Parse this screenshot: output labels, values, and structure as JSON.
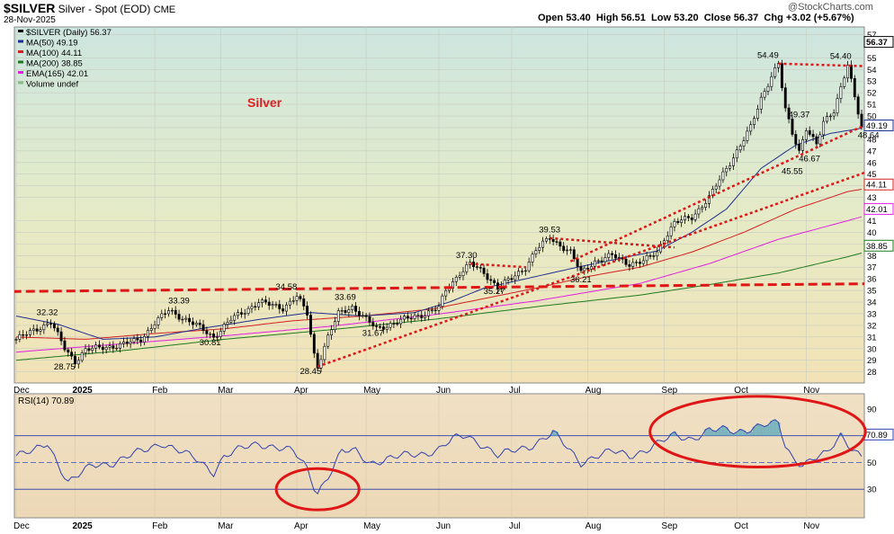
{
  "header": {
    "title": "$SILVER",
    "subtitle": "Silver - Spot (EOD)",
    "exchange": "CME",
    "date": "28-Nov-2025",
    "open_label": "Open",
    "open": "53.40",
    "high_label": "High",
    "high": "56.51",
    "low_label": "Low",
    "low": "53.20",
    "close_label": "Close",
    "close": "56.37",
    "chg_label": "Chg",
    "chg": "+3.02 (+5.67%)",
    "watermark": "@StockCharts.com"
  },
  "legend": [
    {
      "text": "$SILVER (Daily) 56.37",
      "color": "#000000"
    },
    {
      "text": "MA(50) 49.19",
      "color": "#1f2f8f"
    },
    {
      "text": "MA(100) 44.11",
      "color": "#d42020"
    },
    {
      "text": "MA(200) 38.85",
      "color": "#1e7a1e"
    },
    {
      "text": "EMA(165) 42.01",
      "color": "#e020e0"
    },
    {
      "text": "Volume undef",
      "color": "#88bb88"
    }
  ],
  "annotation_label": "Silver",
  "chart_data": [
    {
      "type": "candlestick",
      "title": "$SILVER (Daily)",
      "y_ticks": [
        28,
        29,
        30,
        31,
        32,
        33,
        34,
        35,
        36,
        37,
        38,
        39,
        40,
        41,
        43,
        44,
        45,
        46,
        47,
        48,
        49,
        50,
        51,
        52,
        53,
        54,
        55,
        57
      ],
      "ylim": [
        27.2,
        57.5
      ],
      "x_labels": [
        "Dec",
        "2025",
        "Feb",
        "Mar",
        "Apr",
        "May",
        "Jun",
        "Jul",
        "Aug",
        "Sep",
        "Oct",
        "Nov"
      ],
      "x_label_positions": [
        0,
        17,
        40,
        59,
        81,
        101,
        122,
        143,
        165,
        187,
        208,
        228
      ],
      "bars": 245,
      "price_path": [
        [
          0,
          30.8
        ],
        [
          10,
          32.3
        ],
        [
          14,
          30.0
        ],
        [
          17,
          28.9
        ],
        [
          20,
          29.9
        ],
        [
          30,
          30.3
        ],
        [
          36,
          30.8
        ],
        [
          40,
          32.2
        ],
        [
          44,
          33.3
        ],
        [
          52,
          32.0
        ],
        [
          57,
          31.0
        ],
        [
          62,
          32.5
        ],
        [
          70,
          34.0
        ],
        [
          77,
          33.5
        ],
        [
          81,
          34.5
        ],
        [
          84,
          33.0
        ],
        [
          86,
          29.5
        ],
        [
          87,
          28.5
        ],
        [
          90,
          31.0
        ],
        [
          93,
          33.0
        ],
        [
          97,
          33.6
        ],
        [
          101,
          32.5
        ],
        [
          104,
          31.7
        ],
        [
          107,
          32.0
        ],
        [
          112,
          32.5
        ],
        [
          118,
          33.0
        ],
        [
          122,
          33.5
        ],
        [
          124,
          35.0
        ],
        [
          128,
          36.5
        ],
        [
          131,
          37.3
        ],
        [
          135,
          36.5
        ],
        [
          139,
          35.3
        ],
        [
          143,
          36.0
        ],
        [
          147,
          37.0
        ],
        [
          150,
          38.5
        ],
        [
          154,
          39.5
        ],
        [
          160,
          38.3
        ],
        [
          163,
          36.5
        ],
        [
          167,
          37.5
        ],
        [
          172,
          38.0
        ],
        [
          177,
          37.3
        ],
        [
          181,
          37.5
        ],
        [
          185,
          38.3
        ],
        [
          187,
          39.5
        ],
        [
          190,
          40.8
        ],
        [
          195,
          41.3
        ],
        [
          200,
          43.0
        ],
        [
          204,
          45.0
        ],
        [
          208,
          47.0
        ],
        [
          212,
          49.0
        ],
        [
          215,
          51.5
        ],
        [
          218,
          53.5
        ],
        [
          220,
          54.5
        ],
        [
          222,
          50.5
        ],
        [
          224,
          48.5
        ],
        [
          226,
          47.0
        ],
        [
          228,
          49.0
        ],
        [
          231,
          47.5
        ],
        [
          233,
          49.4
        ],
        [
          236,
          50.5
        ],
        [
          238,
          52.5
        ],
        [
          240,
          54.4
        ],
        [
          242,
          51.5
        ],
        [
          244,
          49.0
        ],
        [
          246,
          51.0
        ],
        [
          247,
          48.6
        ],
        [
          249,
          51.5
        ],
        [
          251,
          53.5
        ],
        [
          252,
          56.4
        ]
      ],
      "price_labels": [
        {
          "text": "32.32",
          "x": 9,
          "y": 32.9
        },
        {
          "text": "28.75",
          "x": 14,
          "y": 28.2
        },
        {
          "text": "33.39",
          "x": 47,
          "y": 33.9
        },
        {
          "text": "30.81",
          "x": 56,
          "y": 30.3
        },
        {
          "text": "34.58",
          "x": 78,
          "y": 35.1
        },
        {
          "text": "28.45",
          "x": 85,
          "y": 27.8
        },
        {
          "text": "33.69",
          "x": 95,
          "y": 34.2
        },
        {
          "text": "31.67",
          "x": 103,
          "y": 31.1
        },
        {
          "text": "37.30",
          "x": 130,
          "y": 37.8
        },
        {
          "text": "35.27",
          "x": 138,
          "y": 34.7
        },
        {
          "text": "39.53",
          "x": 154,
          "y": 40.0
        },
        {
          "text": "36.21",
          "x": 163,
          "y": 35.7
        },
        {
          "text": "54.49",
          "x": 217,
          "y": 55.0
        },
        {
          "text": "49.37",
          "x": 226,
          "y": 49.9
        },
        {
          "text": "45.55",
          "x": 224,
          "y": 45.0
        },
        {
          "text": "46.67",
          "x": 229,
          "y": 46.1
        },
        {
          "text": "54.40",
          "x": 238,
          "y": 54.9
        },
        {
          "text": "48.64",
          "x": 246,
          "y": 48.1
        }
      ],
      "ma_paths": {
        "ma50": [
          [
            0,
            32.8
          ],
          [
            12,
            32.1
          ],
          [
            25,
            30.8
          ],
          [
            40,
            31.0
          ],
          [
            55,
            31.8
          ],
          [
            70,
            32.5
          ],
          [
            85,
            33.1
          ],
          [
            100,
            32.8
          ],
          [
            115,
            33.1
          ],
          [
            125,
            34.0
          ],
          [
            135,
            35.2
          ],
          [
            150,
            36.2
          ],
          [
            162,
            37.0
          ],
          [
            175,
            37.8
          ],
          [
            185,
            38.4
          ],
          [
            195,
            40.0
          ],
          [
            205,
            42.0
          ],
          [
            215,
            45.5
          ],
          [
            225,
            47.5
          ],
          [
            235,
            48.5
          ],
          [
            245,
            49.0
          ],
          [
            252,
            49.2
          ]
        ],
        "ma100": [
          [
            0,
            31.0
          ],
          [
            20,
            30.8
          ],
          [
            40,
            31.3
          ],
          [
            60,
            31.7
          ],
          [
            80,
            32.4
          ],
          [
            100,
            32.8
          ],
          [
            120,
            33.4
          ],
          [
            135,
            34.3
          ],
          [
            150,
            35.2
          ],
          [
            165,
            36.2
          ],
          [
            180,
            37.0
          ],
          [
            195,
            38.3
          ],
          [
            210,
            40.0
          ],
          [
            225,
            42.0
          ],
          [
            240,
            43.5
          ],
          [
            252,
            44.1
          ]
        ],
        "ma200": [
          [
            0,
            29.0
          ],
          [
            30,
            29.8
          ],
          [
            60,
            30.8
          ],
          [
            90,
            31.6
          ],
          [
            120,
            32.5
          ],
          [
            150,
            33.6
          ],
          [
            180,
            34.6
          ],
          [
            200,
            35.5
          ],
          [
            220,
            36.5
          ],
          [
            240,
            37.9
          ],
          [
            252,
            38.85
          ]
        ],
        "ema165": [
          [
            0,
            29.7
          ],
          [
            30,
            30.4
          ],
          [
            60,
            31.1
          ],
          [
            90,
            31.9
          ],
          [
            120,
            32.9
          ],
          [
            150,
            34.1
          ],
          [
            180,
            35.6
          ],
          [
            200,
            37.3
          ],
          [
            220,
            39.4
          ],
          [
            240,
            41.0
          ],
          [
            252,
            42.0
          ]
        ]
      },
      "last_value_tags": [
        {
          "text": "56.37",
          "y": 56.37,
          "color": "#000000",
          "bold": true
        },
        {
          "text": "49.19",
          "y": 49.19,
          "color": "#1f2f8f"
        },
        {
          "text": "44.11",
          "y": 44.11,
          "color": "#d42020"
        },
        {
          "text": "42.01",
          "y": 42.01,
          "color": "#e020e0"
        },
        {
          "text": "38.85",
          "y": 38.85,
          "color": "#1e7a1e"
        }
      ],
      "trendlines": [
        {
          "from": [
            -5,
            34.9
          ],
          "to": [
            255,
            35.6
          ],
          "style": "dashed-thick"
        },
        {
          "from": [
            87,
            28.45
          ],
          "to": [
            255,
            46.2
          ],
          "style": "dotted"
        },
        {
          "from": [
            160,
            37.5
          ],
          "to": [
            255,
            50.6
          ],
          "style": "dotted"
        },
        {
          "from": [
            131,
            37.3
          ],
          "to": [
            147,
            37.0
          ],
          "style": "dotted"
        },
        {
          "from": [
            154,
            39.5
          ],
          "to": [
            190,
            38.7
          ],
          "style": "dotted"
        },
        {
          "from": [
            220,
            54.5
          ],
          "to": [
            255,
            54.2
          ],
          "style": "dotted"
        }
      ]
    },
    {
      "type": "line",
      "title": "RSI(14) 70.89",
      "y_ticks": [
        30,
        50,
        70,
        90
      ],
      "ylim": [
        10,
        100
      ],
      "hlines": [
        30,
        50,
        70
      ],
      "last_value": "70.89",
      "rsi_path": [
        [
          0,
          55
        ],
        [
          5,
          58
        ],
        [
          9,
          65
        ],
        [
          12,
          50
        ],
        [
          15,
          35
        ],
        [
          18,
          40
        ],
        [
          22,
          48
        ],
        [
          28,
          50
        ],
        [
          33,
          55
        ],
        [
          38,
          60
        ],
        [
          42,
          65
        ],
        [
          46,
          60
        ],
        [
          52,
          52
        ],
        [
          57,
          43
        ],
        [
          60,
          55
        ],
        [
          65,
          60
        ],
        [
          70,
          64
        ],
        [
          75,
          62
        ],
        [
          80,
          58
        ],
        [
          84,
          45
        ],
        [
          86,
          32
        ],
        [
          87,
          28
        ],
        [
          90,
          40
        ],
        [
          94,
          58
        ],
        [
          98,
          58
        ],
        [
          102,
          50
        ],
        [
          106,
          52
        ],
        [
          112,
          55
        ],
        [
          118,
          57
        ],
        [
          122,
          60
        ],
        [
          126,
          67
        ],
        [
          130,
          70
        ],
        [
          135,
          63
        ],
        [
          139,
          55
        ],
        [
          143,
          58
        ],
        [
          148,
          62
        ],
        [
          152,
          68
        ],
        [
          155,
          72
        ],
        [
          160,
          58
        ],
        [
          163,
          50
        ],
        [
          167,
          55
        ],
        [
          172,
          58
        ],
        [
          177,
          55
        ],
        [
          182,
          60
        ],
        [
          186,
          65
        ],
        [
          190,
          70
        ],
        [
          195,
          68
        ],
        [
          200,
          74
        ],
        [
          205,
          74
        ],
        [
          208,
          73
        ],
        [
          212,
          76
        ],
        [
          216,
          78
        ],
        [
          218,
          78
        ],
        [
          220,
          79
        ],
        [
          222,
          62
        ],
        [
          224,
          54
        ],
        [
          227,
          49
        ],
        [
          230,
          53
        ],
        [
          234,
          56
        ],
        [
          238,
          70
        ],
        [
          241,
          62
        ],
        [
          244,
          55
        ],
        [
          247,
          58
        ],
        [
          249,
          63
        ],
        [
          252,
          70.89
        ]
      ],
      "highlight_ellipses": [
        {
          "cx": 87,
          "cy": 30,
          "rx": 5,
          "ry": 7
        },
        {
          "cx": 214,
          "cy": 73,
          "rx": 13,
          "ry": 12
        }
      ]
    }
  ]
}
